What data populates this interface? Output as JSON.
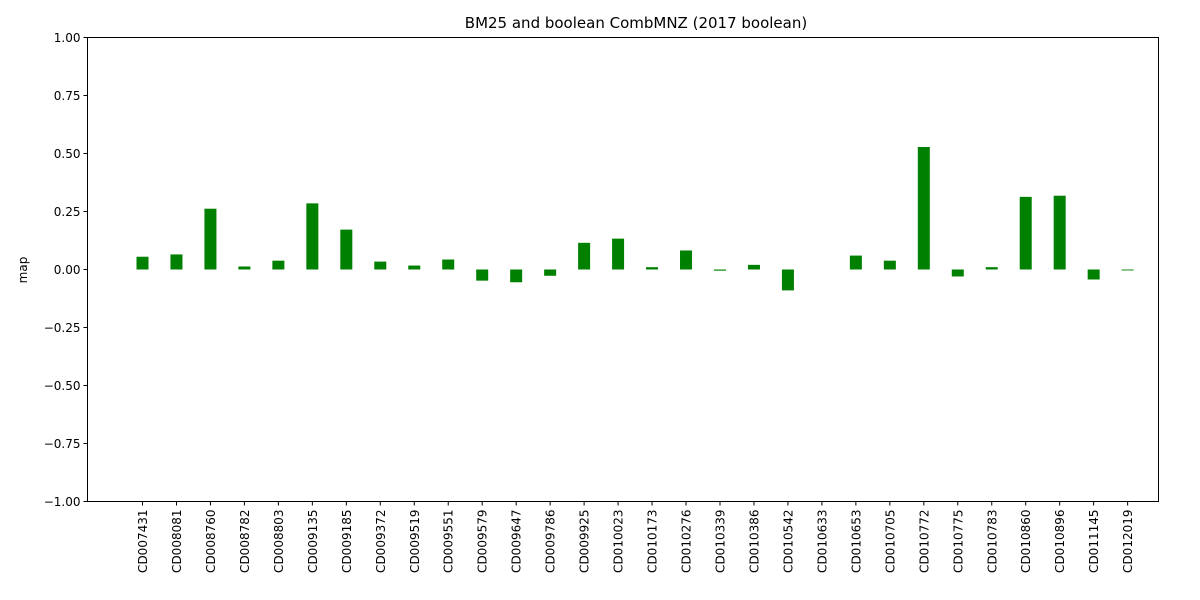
{
  "chart_data": {
    "type": "bar",
    "title": "BM25 and boolean CombMNZ (2017 boolean)",
    "xlabel": "",
    "ylabel": "map",
    "ylim": [
      -1.0,
      1.0
    ],
    "yticks": [
      "1.00",
      "0.75",
      "0.50",
      "0.25",
      "0.00",
      "−0.25",
      "−0.50",
      "−0.75",
      "−1.00"
    ],
    "ytick_values": [
      1.0,
      0.75,
      0.5,
      0.25,
      0.0,
      -0.25,
      -0.5,
      -0.75,
      -1.0
    ],
    "grid": false,
    "bar_color": "#008000",
    "categories": [
      "CD007431",
      "CD008081",
      "CD008760",
      "CD008782",
      "CD008803",
      "CD009135",
      "CD009185",
      "CD009372",
      "CD009519",
      "CD009551",
      "CD009579",
      "CD009647",
      "CD009786",
      "CD009925",
      "CD010023",
      "CD010173",
      "CD010276",
      "CD010339",
      "CD010386",
      "CD010542",
      "CD010633",
      "CD010653",
      "CD010705",
      "CD010772",
      "CD010775",
      "CD010783",
      "CD010860",
      "CD010896",
      "CD011145",
      "CD012019"
    ],
    "values": [
      0.055,
      0.065,
      0.262,
      0.013,
      0.038,
      0.285,
      0.172,
      0.034,
      0.017,
      0.043,
      -0.048,
      -0.055,
      -0.027,
      0.115,
      0.133,
      0.01,
      0.082,
      -0.005,
      0.02,
      -0.09,
      0.0,
      0.06,
      0.038,
      0.528,
      -0.03,
      0.01,
      0.313,
      0.318,
      -0.043,
      -0.004
    ]
  }
}
